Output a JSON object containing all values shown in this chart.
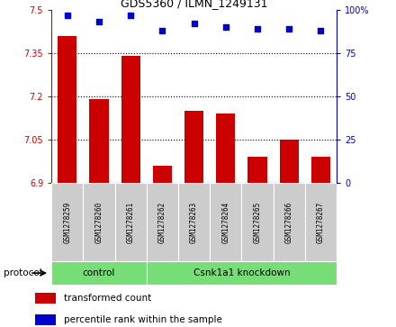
{
  "title": "GDS5360 / ILMN_1249131",
  "samples": [
    "GSM1278259",
    "GSM1278260",
    "GSM1278261",
    "GSM1278262",
    "GSM1278263",
    "GSM1278264",
    "GSM1278265",
    "GSM1278266",
    "GSM1278267"
  ],
  "bar_values": [
    7.41,
    7.19,
    7.34,
    6.96,
    7.15,
    7.14,
    6.99,
    7.05,
    6.99
  ],
  "dot_values": [
    97,
    93,
    97,
    88,
    92,
    90,
    89,
    89,
    88
  ],
  "bar_color": "#cc0000",
  "dot_color": "#0000cc",
  "ylim_left": [
    6.9,
    7.5
  ],
  "ylim_right": [
    0,
    100
  ],
  "yticks_left": [
    6.9,
    7.05,
    7.2,
    7.35,
    7.5
  ],
  "yticks_right": [
    0,
    25,
    50,
    75,
    100
  ],
  "grid_ticks": [
    7.05,
    7.2,
    7.35
  ],
  "control_label": "control",
  "knockdown_label": "Csnk1a1 knockdown",
  "protocol_label": "protocol",
  "legend_bar_label": "transformed count",
  "legend_dot_label": "percentile rank within the sample",
  "group_color": "#77dd77",
  "sample_bg_color": "#cccccc",
  "bar_width": 0.6,
  "n_control": 3
}
